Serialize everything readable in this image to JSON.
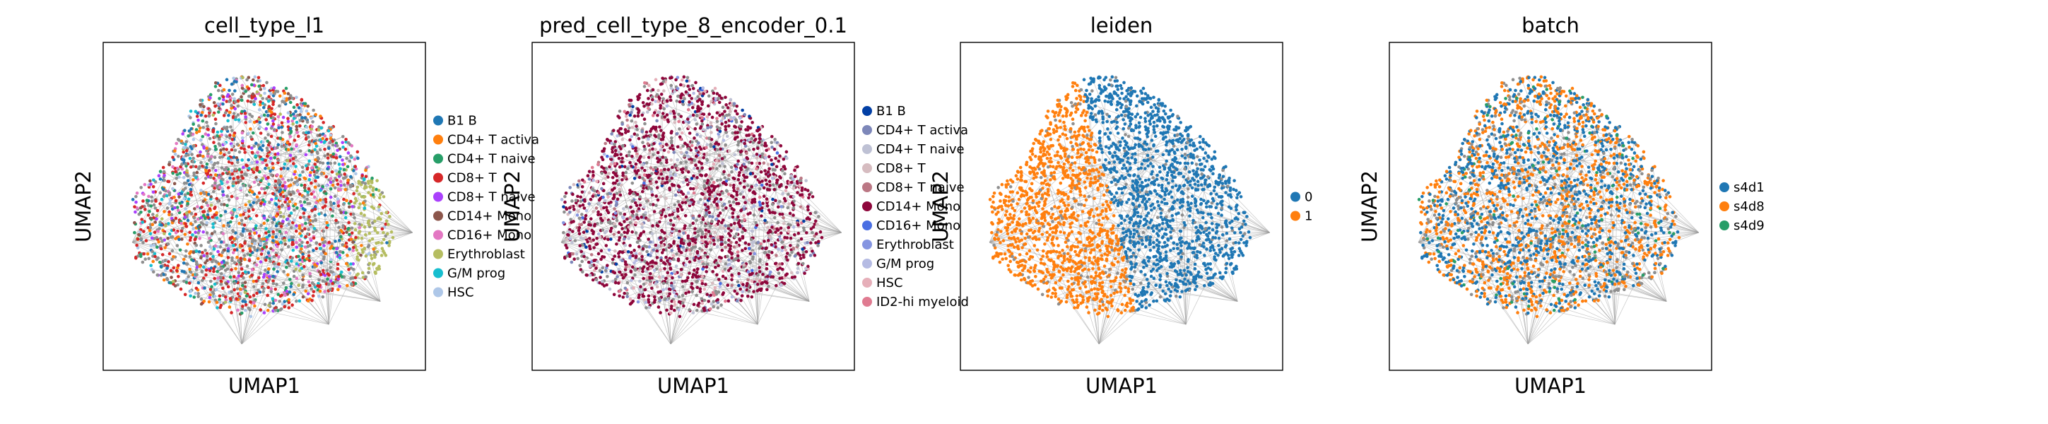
{
  "chart_data": [
    {
      "type": "scatter",
      "title": "cell_type_l1",
      "xlabel": "UMAP1",
      "ylabel": "UMAP2",
      "grid": false,
      "legend_placement": "right",
      "legend": [
        {
          "name": "B1 B",
          "color": "#1f77b4"
        },
        {
          "name": "CD4+ T activa",
          "color": "#ff7f0e"
        },
        {
          "name": "CD4+ T naive",
          "color": "#279e68"
        },
        {
          "name": "CD8+ T",
          "color": "#d62728"
        },
        {
          "name": "CD8+ T naive",
          "color": "#aa40fc"
        },
        {
          "name": "CD14+ Mono",
          "color": "#8c564b"
        },
        {
          "name": "CD16+ Mono",
          "color": "#e377c2"
        },
        {
          "name": "Erythroblast",
          "color": "#b5bd61"
        },
        {
          "name": "G/M prog",
          "color": "#17becf"
        },
        {
          "name": "HSC",
          "color": "#aec7e8"
        }
      ]
    },
    {
      "type": "scatter",
      "title": "pred_cell_type_8_encoder_0.1",
      "xlabel": "UMAP1",
      "ylabel": "UMAP2",
      "grid": false,
      "legend_placement": "right",
      "legend": [
        {
          "name": "B1 B",
          "color": "#023fa5"
        },
        {
          "name": "CD4+ T activa",
          "color": "#7d87b9"
        },
        {
          "name": "CD4+ T naive",
          "color": "#bec1d4"
        },
        {
          "name": "CD8+ T",
          "color": "#d6bcc0"
        },
        {
          "name": "CD8+ T naive",
          "color": "#bb7784"
        },
        {
          "name": "CD14+ Mono",
          "color": "#8e063b"
        },
        {
          "name": "CD16+ Mono",
          "color": "#4a6fe3"
        },
        {
          "name": "Erythroblast",
          "color": "#8595e1"
        },
        {
          "name": "G/M prog",
          "color": "#b5bbe3"
        },
        {
          "name": "HSC",
          "color": "#e6afb9"
        },
        {
          "name": "ID2-hi myeloid",
          "color": "#e07b91"
        }
      ]
    },
    {
      "type": "scatter",
      "title": "leiden",
      "xlabel": "UMAP1",
      "ylabel": "UMAP2",
      "grid": false,
      "legend_placement": "right",
      "legend": [
        {
          "name": "0",
          "color": "#1f77b4"
        },
        {
          "name": "1",
          "color": "#ff7f0e"
        }
      ]
    },
    {
      "type": "scatter",
      "title": "batch",
      "xlabel": "UMAP1",
      "ylabel": "UMAP2",
      "grid": false,
      "legend_placement": "right",
      "legend": [
        {
          "name": "s4d1",
          "color": "#1f77b4"
        },
        {
          "name": "s4d8",
          "color": "#ff7f0e"
        },
        {
          "name": "s4d9",
          "color": "#279e68"
        }
      ]
    }
  ],
  "colors": {
    "edges": "#9a9a9a",
    "unlabeled_points": "#8f8f8f",
    "frame": "#000000"
  }
}
